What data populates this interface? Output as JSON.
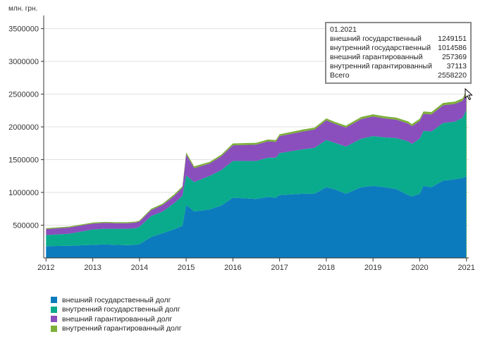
{
  "chart_data": {
    "type": "area",
    "stacked": true,
    "unit_label": "млн. грн.",
    "ylim": [
      0,
      3700000
    ],
    "y_ticks": [
      500000,
      1000000,
      1500000,
      2000000,
      2500000,
      3000000,
      3500000
    ],
    "y_tick_labels": [
      "500000",
      "1000000",
      "1500000",
      "2000000",
      "2500000",
      "3000000",
      "3500000"
    ],
    "x_tick_labels": [
      "2012",
      "2013",
      "2014",
      "2015",
      "2016",
      "2017",
      "2018",
      "2019",
      "2020",
      "2021"
    ],
    "x_tick_years": [
      2012,
      2013,
      2014,
      2015,
      2016,
      2017,
      2018,
      2019,
      2020,
      2021
    ],
    "xlim": [
      2011.95,
      2021.05
    ],
    "grid": "horizontal",
    "legend_position": "bottom-left",
    "x": [
      2012.0,
      2012.5,
      2013.0,
      2013.25,
      2013.5,
      2013.75,
      2013.92,
      2014.0,
      2014.25,
      2014.5,
      2014.75,
      2014.92,
      2015.0,
      2015.17,
      2015.5,
      2015.75,
      2016.0,
      2016.5,
      2016.75,
      2016.92,
      2017.0,
      2017.5,
      2017.75,
      2018.0,
      2018.17,
      2018.42,
      2018.75,
      2019.0,
      2019.25,
      2019.5,
      2019.75,
      2019.83,
      2020.0,
      2020.08,
      2020.25,
      2020.5,
      2020.75,
      2020.92,
      2021.0
    ],
    "series": [
      {
        "name": "внешний государственный долг",
        "color": "#0c7bbd",
        "values": [
          180000,
          185000,
          200000,
          205000,
          200000,
          195000,
          200000,
          210000,
          320000,
          380000,
          440000,
          490000,
          810000,
          710000,
          740000,
          800000,
          920000,
          900000,
          930000,
          920000,
          960000,
          980000,
          980000,
          1080000,
          1050000,
          980000,
          1080000,
          1100000,
          1080000,
          1050000,
          960000,
          940000,
          980000,
          1100000,
          1080000,
          1180000,
          1200000,
          1220000,
          1249151
        ]
      },
      {
        "name": "внутренний государственный долг",
        "color": "#0aab8c",
        "values": [
          170000,
          185000,
          235000,
          240000,
          245000,
          250000,
          255000,
          265000,
          320000,
          330000,
          400000,
          460000,
          450000,
          450000,
          510000,
          540000,
          560000,
          580000,
          600000,
          610000,
          640000,
          680000,
          700000,
          720000,
          710000,
          720000,
          740000,
          760000,
          760000,
          780000,
          820000,
          800000,
          840000,
          840000,
          850000,
          880000,
          880000,
          920000,
          1014586
        ]
      },
      {
        "name": "внешний гарантированный долг",
        "color": "#8a4ebd",
        "values": [
          90000,
          95000,
          90000,
          90000,
          85000,
          85000,
          85000,
          80000,
          90000,
          100000,
          110000,
          120000,
          320000,
          210000,
          190000,
          210000,
          240000,
          250000,
          250000,
          240000,
          260000,
          270000,
          280000,
          300000,
          290000,
          290000,
          300000,
          300000,
          290000,
          280000,
          270000,
          270000,
          270000,
          260000,
          260000,
          270000,
          270000,
          260000,
          257369
        ]
      },
      {
        "name": "внутренний гарантированный долг",
        "color": "#7daf3a",
        "values": [
          15000,
          15000,
          15000,
          15000,
          15000,
          15000,
          15000,
          15000,
          20000,
          20000,
          25000,
          25000,
          30000,
          28000,
          26000,
          26000,
          28000,
          28000,
          28000,
          28000,
          28000,
          30000,
          30000,
          30000,
          30000,
          30000,
          32000,
          32000,
          32000,
          32000,
          34000,
          34000,
          34000,
          36000,
          36000,
          36000,
          36000,
          37000,
          37113
        ]
      }
    ]
  },
  "tooltip": {
    "date": "01.2021",
    "rows": [
      {
        "label": "внешний государственный",
        "value": "1249151"
      },
      {
        "label": "внутренний государственный",
        "value": "1014586"
      },
      {
        "label": "внешний гарантированный",
        "value": "257369"
      },
      {
        "label": "внутренний гарантированный",
        "value": "37113"
      },
      {
        "label": "Всего",
        "value": "2558220"
      }
    ]
  },
  "legend": [
    {
      "label": "внешний государственный долг",
      "color": "#0c7bbd"
    },
    {
      "label": "внутренний государственный долг",
      "color": "#0aab8c"
    },
    {
      "label": "внешний гарантированный долг",
      "color": "#8a4ebd"
    },
    {
      "label": "внутренний гарантированный долг",
      "color": "#7daf3a"
    }
  ],
  "colors": {
    "grid": "#e0e0e0",
    "axis": "#333333",
    "crosshair": "#7daf3a"
  },
  "icons": {
    "cursor": "mouse-pointer-icon"
  }
}
